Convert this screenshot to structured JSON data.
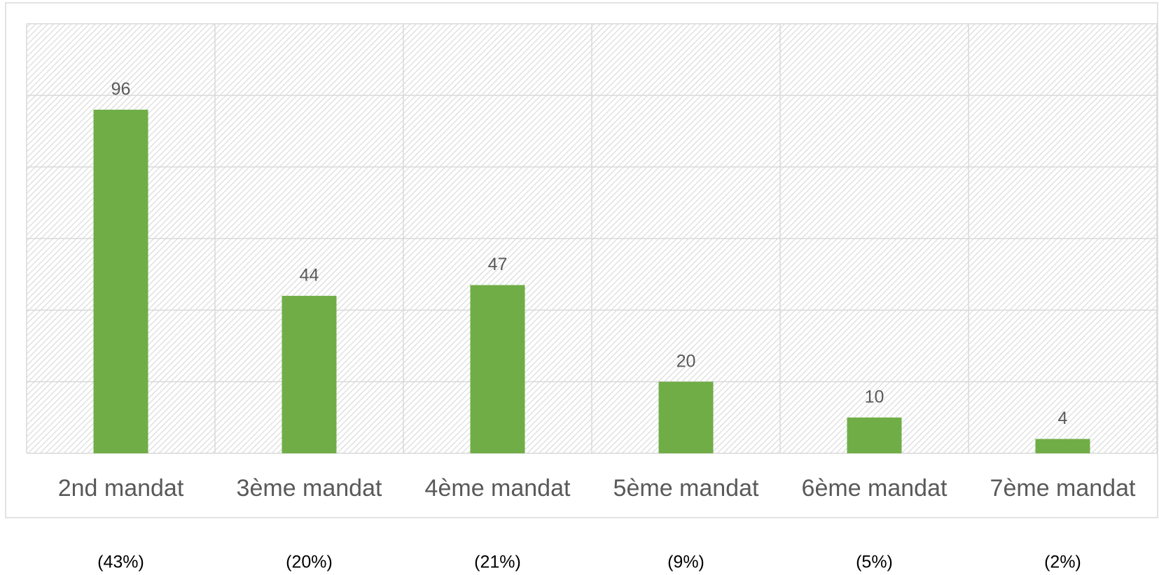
{
  "chart_data": {
    "type": "bar",
    "categories": [
      "2nd mandat",
      "3ème mandat",
      "4ème mandat",
      "5ème mandat",
      "6ème mandat",
      "7ème mandat"
    ],
    "values": [
      96,
      44,
      47,
      20,
      10,
      4
    ],
    "color": "#70ad47",
    "ylim": [
      0,
      120
    ],
    "yticks": [
      0,
      20,
      40,
      60,
      80,
      100,
      120
    ],
    "grid": true,
    "annotations": [
      "(43%)",
      "(20%)",
      "(21%)",
      "(9%)",
      "(5%)",
      "(2%)"
    ]
  }
}
